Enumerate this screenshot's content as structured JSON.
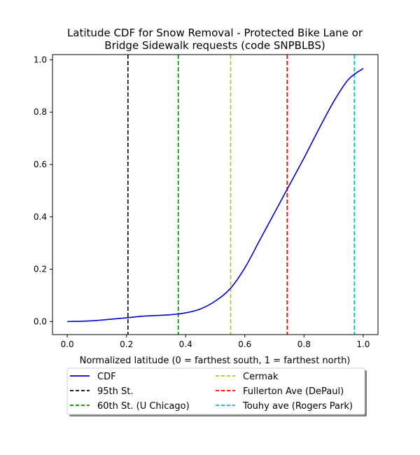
{
  "chart_data": {
    "type": "line",
    "title_lines": [
      "Latitude CDF for Snow Removal - Protected Bike Lane or",
      "Bridge Sidewalk  requests (code SNPBLBS)"
    ],
    "xlabel": "Normalized latitude (0 = farthest south, 1 = farthest north)",
    "ylabel": "",
    "xlim": [
      -0.05,
      1.05
    ],
    "ylim": [
      -0.05,
      1.02
    ],
    "x_ticks": [
      0.0,
      0.2,
      0.4,
      0.6,
      0.8,
      1.0
    ],
    "x_tick_labels": [
      "0.0",
      "0.2",
      "0.4",
      "0.6",
      "0.8",
      "1.0"
    ],
    "y_ticks": [
      0.0,
      0.2,
      0.4,
      0.6,
      0.8,
      1.0
    ],
    "y_tick_labels": [
      "0.0",
      "0.2",
      "0.4",
      "0.6",
      "0.8",
      "1.0"
    ],
    "grid": false,
    "legend_placement": "below plot, two columns",
    "series": [
      {
        "name": "CDF",
        "color": "#0000cc",
        "style": "solid",
        "x": [
          0.0,
          0.05,
          0.1,
          0.15,
          0.2,
          0.25,
          0.3,
          0.35,
          0.4,
          0.45,
          0.5,
          0.55,
          0.6,
          0.65,
          0.7,
          0.75,
          0.8,
          0.85,
          0.9,
          0.95,
          1.0
        ],
        "y": [
          0.0,
          0.001,
          0.004,
          0.009,
          0.014,
          0.02,
          0.023,
          0.026,
          0.033,
          0.048,
          0.078,
          0.125,
          0.205,
          0.31,
          0.415,
          0.52,
          0.625,
          0.735,
          0.84,
          0.925,
          0.967
        ]
      }
    ],
    "reference_lines": [
      {
        "name": "95th St.",
        "x": 0.205,
        "color": "#000000"
      },
      {
        "name": "60th St. (U Chicago)",
        "x": 0.375,
        "color": "#008000"
      },
      {
        "name": "Cermak",
        "x": 0.552,
        "color": "#bfbf00"
      },
      {
        "name": "Fullerton Ave (DePaul)",
        "x": 0.743,
        "color": "#ff0000"
      },
      {
        "name": "Touhy ave (Rogers Park)",
        "x": 0.97,
        "color": "#00bfbf"
      }
    ],
    "legend": {
      "columns": [
        [
          "CDF",
          "95th St.",
          "60th St. (U Chicago)"
        ],
        [
          "Cermak",
          "Fullerton Ave (DePaul)",
          "Touhy ave (Rogers Park)"
        ]
      ]
    }
  }
}
